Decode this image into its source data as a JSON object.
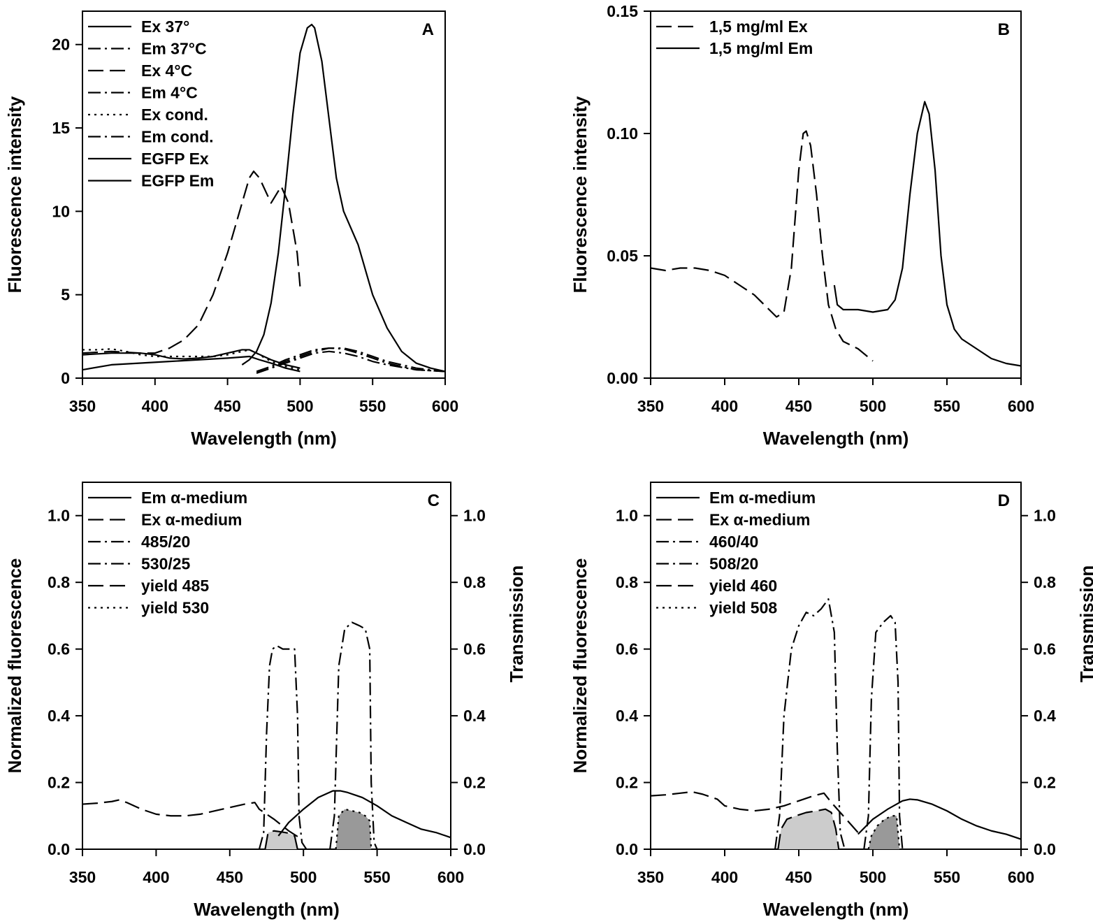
{
  "chart_data": [
    {
      "panel": "A",
      "type": "line",
      "xlabel": "Wavelength (nm)",
      "ylabel": "Fluorescence intensity",
      "xlim": [
        350,
        600
      ],
      "ylim": [
        0,
        22
      ],
      "xticks": [
        350,
        400,
        450,
        500,
        550,
        600
      ],
      "yticks": [
        0,
        5,
        10,
        15,
        20
      ],
      "ytick_labels": [
        "0",
        "5",
        "10",
        "15",
        "20"
      ],
      "legend_position": "top-left",
      "series": [
        {
          "name": "Ex 37°",
          "dash": "solid",
          "x": [
            350,
            370,
            390,
            410,
            430,
            450,
            465,
            472,
            480,
            490,
            500
          ],
          "y": [
            0.5,
            0.8,
            0.9,
            1.0,
            1.1,
            1.2,
            1.3,
            1.1,
            0.9,
            0.6,
            0.4
          ]
        },
        {
          "name": "Em 37°C",
          "dash": "dashdot",
          "x": [
            470,
            480,
            490,
            500,
            510,
            520,
            530,
            540,
            550,
            560,
            580,
            600
          ],
          "y": [
            0.3,
            0.6,
            0.9,
            1.2,
            1.5,
            1.6,
            1.5,
            1.3,
            1.0,
            0.8,
            0.5,
            0.4
          ]
        },
        {
          "name": "Ex 4°C",
          "dash": "dash",
          "x": [
            350,
            370,
            390,
            400,
            410,
            420,
            430,
            440,
            450,
            460,
            465,
            468,
            472,
            480,
            487,
            492,
            498,
            500
          ],
          "y": [
            1.5,
            1.6,
            1.5,
            1.5,
            1.8,
            2.3,
            3.2,
            5.0,
            7.5,
            10.5,
            12.0,
            12.4,
            12.0,
            10.5,
            11.5,
            10.5,
            7.5,
            5.5
          ]
        },
        {
          "name": "Em 4°C",
          "dash": "dashdot",
          "x": [
            470,
            480,
            490,
            500,
            510,
            520,
            530,
            540,
            550,
            560,
            580,
            600
          ],
          "y": [
            0.3,
            0.6,
            1.0,
            1.3,
            1.6,
            1.8,
            1.75,
            1.5,
            1.2,
            0.9,
            0.5,
            0.4
          ]
        },
        {
          "name": "Ex cond.",
          "dash": "dot",
          "x": [
            350,
            360,
            370,
            380,
            390,
            400,
            410,
            420,
            430,
            440,
            450,
            460,
            465,
            470,
            480,
            490,
            500
          ],
          "y": [
            1.7,
            1.7,
            1.75,
            1.6,
            1.4,
            1.3,
            1.3,
            1.3,
            1.3,
            1.3,
            1.4,
            1.6,
            1.7,
            1.5,
            1.0,
            0.7,
            0.5
          ]
        },
        {
          "name": "Em cond.",
          "dash": "dashdot",
          "x": [
            470,
            480,
            490,
            500,
            510,
            520,
            530,
            540,
            550,
            560,
            580,
            600
          ],
          "y": [
            0.4,
            0.7,
            1.1,
            1.4,
            1.7,
            1.8,
            1.8,
            1.6,
            1.3,
            1.0,
            0.6,
            0.4
          ]
        },
        {
          "name": "EGFP Ex",
          "dash": "solid",
          "x": [
            350,
            370,
            390,
            400,
            410,
            420,
            430,
            440,
            450,
            460,
            465,
            470,
            480,
            490,
            500
          ],
          "y": [
            1.4,
            1.5,
            1.5,
            1.4,
            1.2,
            1.15,
            1.2,
            1.3,
            1.5,
            1.7,
            1.7,
            1.5,
            1.1,
            0.8,
            0.6
          ]
        },
        {
          "name": "EGFP Em",
          "dash": "solid",
          "x": [
            460,
            465,
            470,
            475,
            480,
            485,
            490,
            495,
            500,
            505,
            508,
            510,
            515,
            520,
            525,
            530,
            535,
            540,
            545,
            550,
            560,
            570,
            580,
            590,
            600
          ],
          "y": [
            0.8,
            1.1,
            1.6,
            2.6,
            4.5,
            7.5,
            11.5,
            15.8,
            19.5,
            21.0,
            21.2,
            21.0,
            19.0,
            15.5,
            12.0,
            10.0,
            9.0,
            8.0,
            6.5,
            5.0,
            3.0,
            1.6,
            0.9,
            0.6,
            0.4
          ]
        }
      ]
    },
    {
      "panel": "B",
      "type": "line",
      "xlabel": "Wavelength (nm)",
      "ylabel": "Fluorescence intensity",
      "xlim": [
        350,
        600
      ],
      "ylim": [
        0,
        0.15
      ],
      "xticks": [
        350,
        400,
        450,
        500,
        550,
        600
      ],
      "yticks": [
        0,
        0.05,
        0.1,
        0.15
      ],
      "ytick_labels": [
        "0.00",
        "0.05",
        "0.10",
        "0.15"
      ],
      "legend_position": "top-left",
      "series": [
        {
          "name": "1,5 mg/ml Ex",
          "dash": "dash",
          "x": [
            350,
            360,
            370,
            380,
            390,
            400,
            410,
            420,
            430,
            435,
            440,
            445,
            450,
            453,
            455,
            458,
            462,
            466,
            470,
            475,
            480,
            490,
            500
          ],
          "y": [
            0.045,
            0.044,
            0.045,
            0.045,
            0.044,
            0.042,
            0.038,
            0.034,
            0.028,
            0.025,
            0.027,
            0.045,
            0.085,
            0.1,
            0.101,
            0.095,
            0.075,
            0.05,
            0.03,
            0.02,
            0.015,
            0.012,
            0.007
          ]
        },
        {
          "name": "1,5 mg/ml Em",
          "dash": "solid",
          "x": [
            474,
            476,
            480,
            490,
            500,
            510,
            515,
            520,
            525,
            530,
            535,
            538,
            542,
            546,
            550,
            555,
            560,
            570,
            580,
            590,
            600
          ],
          "y": [
            0.038,
            0.03,
            0.028,
            0.028,
            0.027,
            0.028,
            0.032,
            0.045,
            0.075,
            0.1,
            0.113,
            0.108,
            0.085,
            0.05,
            0.03,
            0.02,
            0.016,
            0.012,
            0.008,
            0.006,
            0.005
          ]
        }
      ]
    },
    {
      "panel": "C",
      "type": "line",
      "xlabel": "Wavelength (nm)",
      "ylabel": "Normalized fluorescence",
      "y2label": "Transmission",
      "xlim": [
        350,
        600
      ],
      "ylim": [
        0,
        1.1
      ],
      "xticks": [
        350,
        400,
        450,
        500,
        550,
        600
      ],
      "yticks": [
        0,
        0.2,
        0.4,
        0.6,
        0.8,
        1.0
      ],
      "ytick_labels": [
        "0.0",
        "0.2",
        "0.4",
        "0.6",
        "0.8",
        "1.0"
      ],
      "legend_position": "top-left",
      "series": [
        {
          "name": "Em α-medium",
          "dash": "solid",
          "x": [
            483,
            490,
            500,
            510,
            520,
            525,
            530,
            540,
            550,
            560,
            570,
            580,
            590,
            600
          ],
          "y": [
            0.04,
            0.08,
            0.12,
            0.155,
            0.175,
            0.175,
            0.17,
            0.155,
            0.13,
            0.1,
            0.08,
            0.06,
            0.05,
            0.035
          ]
        },
        {
          "name": "Ex α-medium",
          "dash": "dash",
          "x": [
            350,
            360,
            370,
            375,
            380,
            390,
            400,
            410,
            420,
            430,
            440,
            450,
            460,
            467,
            470,
            480,
            490,
            497
          ],
          "y": [
            0.135,
            0.138,
            0.143,
            0.148,
            0.14,
            0.12,
            0.105,
            0.1,
            0.1,
            0.105,
            0.115,
            0.125,
            0.135,
            0.14,
            0.12,
            0.09,
            0.055,
            0.035
          ]
        },
        {
          "name": "485/20",
          "dash": "dashdot",
          "x": [
            470,
            473,
            475,
            477,
            479,
            482,
            486,
            490,
            494,
            496,
            497,
            499,
            502
          ],
          "y": [
            0.0,
            0.05,
            0.35,
            0.55,
            0.6,
            0.61,
            0.6,
            0.6,
            0.6,
            0.4,
            0.1,
            0.02,
            0.0
          ]
        },
        {
          "name": "530/25",
          "dash": "dashdot",
          "x": [
            518,
            521,
            524,
            528,
            533,
            538,
            542,
            545,
            546,
            548,
            550
          ],
          "y": [
            0.0,
            0.1,
            0.55,
            0.66,
            0.68,
            0.67,
            0.66,
            0.6,
            0.2,
            0.02,
            0.0
          ]
        },
        {
          "name": "yield 485",
          "dash": "dash",
          "fill": "#cccccc",
          "x": [
            474,
            476,
            480,
            485,
            490,
            494,
            496
          ],
          "y": [
            0.0,
            0.05,
            0.055,
            0.052,
            0.048,
            0.04,
            0.0
          ]
        },
        {
          "name": "yield 530",
          "dash": "dot",
          "fill": "#999999",
          "x": [
            522,
            524,
            528,
            533,
            538,
            542,
            545,
            546
          ],
          "y": [
            0.0,
            0.1,
            0.12,
            0.115,
            0.11,
            0.1,
            0.085,
            0.0
          ]
        }
      ]
    },
    {
      "panel": "D",
      "type": "line",
      "xlabel": "Wavelength (nm)",
      "ylabel": "Normalized fluorescence",
      "y2label": "Transmission",
      "xlim": [
        350,
        600
      ],
      "ylim": [
        0,
        1.1
      ],
      "xticks": [
        350,
        400,
        450,
        500,
        550,
        600
      ],
      "yticks": [
        0,
        0.2,
        0.4,
        0.6,
        0.8,
        1.0
      ],
      "ytick_labels": [
        "0.0",
        "0.2",
        "0.4",
        "0.6",
        "0.8",
        "1.0"
      ],
      "legend_position": "top-left",
      "series": [
        {
          "name": "Em α-medium",
          "dash": "solid",
          "x": [
            490,
            500,
            510,
            520,
            525,
            530,
            540,
            550,
            560,
            570,
            580,
            590,
            600
          ],
          "y": [
            0.045,
            0.09,
            0.12,
            0.145,
            0.15,
            0.148,
            0.135,
            0.115,
            0.09,
            0.07,
            0.055,
            0.045,
            0.03
          ]
        },
        {
          "name": "Ex α-medium",
          "dash": "dash",
          "x": [
            350,
            360,
            370,
            378,
            385,
            395,
            400,
            410,
            420,
            430,
            440,
            450,
            460,
            467,
            472,
            480,
            490
          ],
          "y": [
            0.16,
            0.163,
            0.168,
            0.172,
            0.165,
            0.15,
            0.13,
            0.12,
            0.115,
            0.12,
            0.13,
            0.145,
            0.16,
            0.168,
            0.14,
            0.1,
            0.05
          ]
        },
        {
          "name": "460/40",
          "dash": "dashdot",
          "x": [
            434,
            437,
            440,
            445,
            450,
            455,
            460,
            465,
            470,
            474,
            476,
            478,
            481
          ],
          "y": [
            0.0,
            0.1,
            0.4,
            0.6,
            0.67,
            0.71,
            0.7,
            0.72,
            0.75,
            0.65,
            0.3,
            0.05,
            0.0
          ]
        },
        {
          "name": "508/20",
          "dash": "dashdot",
          "x": [
            494,
            497,
            499,
            502,
            507,
            512,
            515,
            517,
            518,
            520
          ],
          "y": [
            0.0,
            0.1,
            0.45,
            0.65,
            0.68,
            0.7,
            0.68,
            0.5,
            0.1,
            0.0
          ]
        },
        {
          "name": "yield 460",
          "dash": "dash",
          "fill": "#cccccc",
          "x": [
            436,
            438,
            442,
            448,
            455,
            462,
            468,
            472,
            475,
            477
          ],
          "y": [
            0.0,
            0.06,
            0.09,
            0.1,
            0.11,
            0.115,
            0.12,
            0.11,
            0.06,
            0.0
          ]
        },
        {
          "name": "yield 508",
          "dash": "dot",
          "fill": "#999999",
          "x": [
            497,
            499,
            503,
            508,
            513,
            516,
            518
          ],
          "y": [
            0.0,
            0.04,
            0.07,
            0.09,
            0.1,
            0.1,
            0.0
          ]
        }
      ]
    }
  ]
}
